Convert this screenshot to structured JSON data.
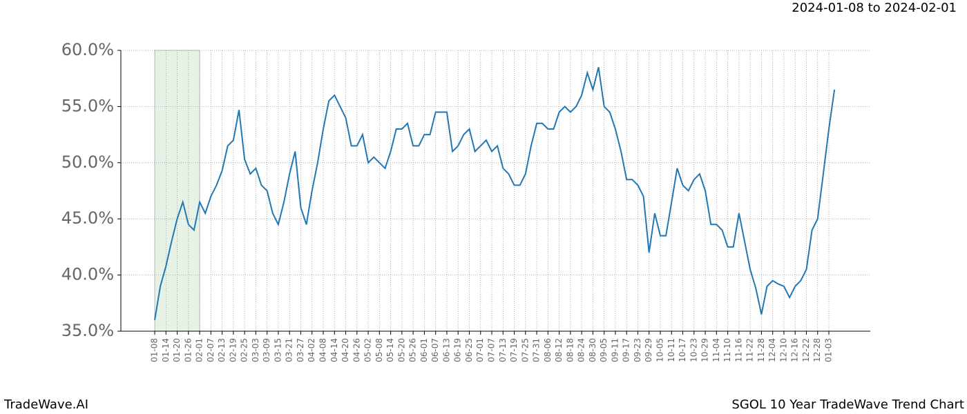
{
  "header": {
    "date_range": "2024-01-08 to 2024-02-01"
  },
  "footer": {
    "brand": "TradeWave.AI",
    "caption": "SGOL 10 Year TradeWave Trend Chart"
  },
  "chart_data": {
    "type": "line",
    "categories": [
      "01-08",
      null,
      "01-14",
      null,
      "01-20",
      null,
      "01-26",
      null,
      "02-01",
      null,
      "02-07",
      null,
      "02-13",
      null,
      "02-19",
      null,
      "02-25",
      null,
      "03-03",
      null,
      "03-09",
      null,
      "03-15",
      null,
      "03-21",
      null,
      "03-27",
      null,
      "04-02",
      null,
      "04-08",
      null,
      "04-14",
      null,
      "04-20",
      null,
      "04-26",
      null,
      "05-02",
      null,
      "05-08",
      null,
      "05-14",
      null,
      "05-20",
      null,
      "05-26",
      null,
      "06-01",
      null,
      "06-07",
      null,
      "06-13",
      null,
      "06-19",
      null,
      "06-25",
      null,
      "07-01",
      null,
      "07-07",
      null,
      "07-13",
      null,
      "07-19",
      null,
      "07-25",
      null,
      "07-31",
      null,
      "08-06",
      null,
      "08-12",
      null,
      "08-18",
      null,
      "08-24",
      null,
      "08-30",
      null,
      "09-05",
      null,
      "09-11",
      null,
      "09-17",
      null,
      "09-23",
      null,
      "09-29",
      null,
      "10-05",
      null,
      "10-11",
      null,
      "10-17",
      null,
      "10-23",
      null,
      "10-29",
      null,
      "11-04",
      null,
      "11-10",
      null,
      "11-16",
      null,
      "11-22",
      null,
      "11-28",
      null,
      "12-04",
      null,
      "12-10",
      null,
      "12-16",
      null,
      "12-22",
      null,
      "12-28",
      null,
      "01-03",
      null
    ],
    "series": [
      {
        "color": "#1f77b4",
        "values": [
          36.0,
          39.0,
          40.8,
          43.0,
          45.0,
          46.5,
          44.5,
          44.0,
          46.5,
          45.5,
          47.0,
          48.0,
          49.3,
          51.5,
          52.0,
          54.7,
          50.3,
          49.0,
          49.5,
          48.0,
          47.5,
          45.5,
          44.5,
          46.5,
          49.0,
          51.0,
          46.0,
          44.5,
          47.5,
          50.0,
          53.0,
          55.5,
          56.0,
          55.0,
          54.0,
          51.5,
          51.5,
          52.5,
          50.0,
          50.5,
          50.0,
          49.5,
          51.0,
          53.0,
          53.0,
          53.5,
          51.5,
          51.5,
          52.5,
          52.5,
          54.5,
          54.5,
          54.5,
          51.0,
          51.5,
          52.5,
          53.0,
          51.0,
          51.5,
          52.0,
          51.0,
          51.5,
          49.5,
          49.0,
          48.0,
          48.0,
          49.0,
          51.5,
          53.5,
          53.5,
          53.0,
          53.0,
          54.5,
          55.0,
          54.5,
          55.0,
          56.0,
          58.0,
          56.5,
          58.5,
          55.0,
          54.5,
          53.0,
          51.0,
          48.5,
          48.5,
          48.0,
          47.0,
          42.0,
          45.5,
          43.5,
          43.5,
          46.5,
          49.5,
          48.0,
          47.5,
          48.5,
          49.0,
          47.5,
          44.5,
          44.5,
          44.0,
          42.5,
          42.5,
          45.5,
          43.0,
          40.5,
          38.8,
          36.5,
          39.0,
          39.5,
          39.2,
          39.0,
          38.0,
          39.0,
          39.5,
          40.5,
          44.0,
          45.0,
          49.0,
          53.0,
          56.5
        ]
      }
    ],
    "highlight": [
      0,
      8
    ],
    "ylim": [
      35,
      60
    ],
    "yticks": [
      {
        "value": 35,
        "label": "35.0%"
      },
      {
        "value": 40,
        "label": "40.0%"
      },
      {
        "value": 45,
        "label": "45.0%"
      },
      {
        "value": 50,
        "label": "50.0%"
      },
      {
        "value": 55,
        "label": "55.0%"
      },
      {
        "value": 60,
        "label": "60.0%"
      }
    ],
    "grid": true
  }
}
